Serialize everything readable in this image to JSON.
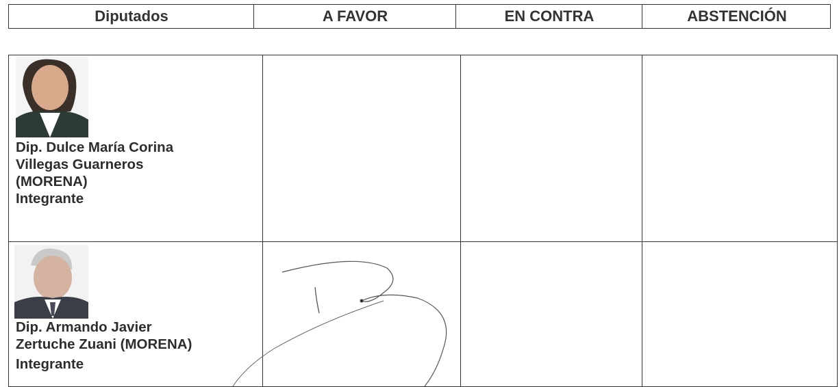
{
  "header": {
    "columns": [
      "Diputados",
      "A FAVOR",
      "EN CONTRA",
      "ABSTENCIÓN"
    ]
  },
  "rows": [
    {
      "name_lines": [
        "Dip. Dulce María Corina",
        "Villegas Guarneros",
        "(MORENA)"
      ],
      "role": "Integrante"
    },
    {
      "name_lines": [
        "Dip. Armando Javier",
        "Zertuche Zuani (MORENA)"
      ],
      "role": "Integrante"
    }
  ]
}
